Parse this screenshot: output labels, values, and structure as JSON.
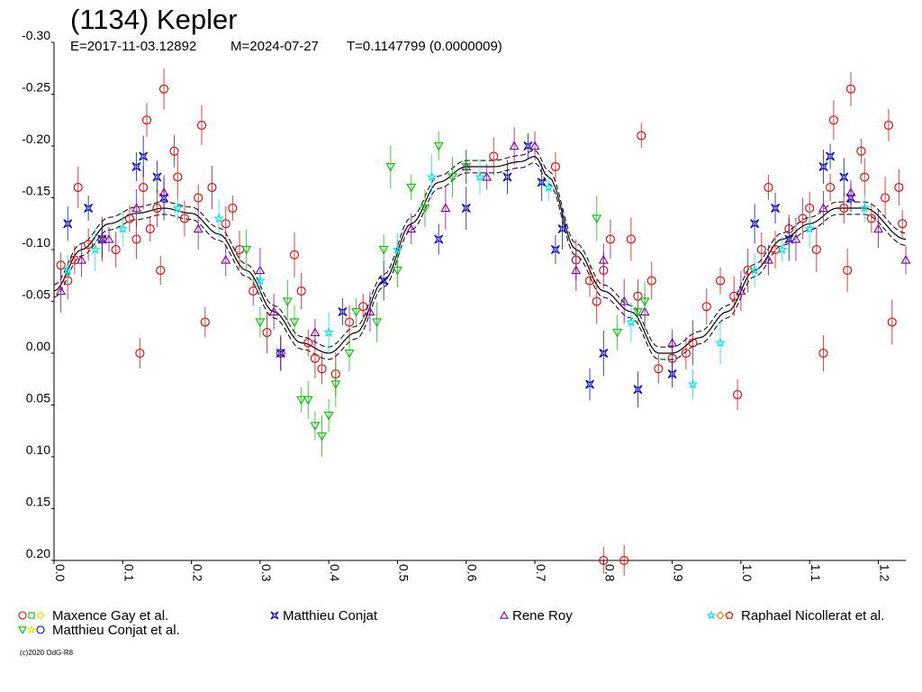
{
  "chart_data": {
    "type": "scatter",
    "title": "(1134) Kepler",
    "subtitle": {
      "epoch": "E=2017-11-03.12892",
      "mid": "M=2024-07-27",
      "period": "T=0.1147799 (0.0000009)"
    },
    "xlim": [
      0.0,
      1.24
    ],
    "ylim": [
      -0.3,
      0.2
    ],
    "y_inverted": true,
    "xticks": [
      "0.0",
      "0.1",
      "0.2",
      "0.3",
      "0.4",
      "0.5",
      "0.6",
      "0.7",
      "0.8",
      "0.9",
      "1.0",
      "1.1",
      "1.2"
    ],
    "yticks": [
      "-0.30",
      "-0.25",
      "-0.20",
      "-0.15",
      "-0.10",
      "-0.05",
      "0.00",
      "0.05",
      "0.10",
      "0.15",
      "0.20"
    ],
    "fit_curve": {
      "x": [
        0.0,
        0.04,
        0.08,
        0.12,
        0.16,
        0.2,
        0.24,
        0.28,
        0.32,
        0.36,
        0.4,
        0.44,
        0.48,
        0.52,
        0.56,
        0.6,
        0.64,
        0.68,
        0.7,
        0.72,
        0.76,
        0.8,
        0.84,
        0.88,
        0.9,
        0.94,
        0.98,
        1.02,
        1.06,
        1.1,
        1.14,
        1.18,
        1.24
      ],
      "y": [
        -0.06,
        -0.1,
        -0.125,
        -0.135,
        -0.14,
        -0.135,
        -0.115,
        -0.08,
        -0.04,
        -0.01,
        0.0,
        -0.02,
        -0.07,
        -0.125,
        -0.165,
        -0.18,
        -0.18,
        -0.185,
        -0.19,
        -0.17,
        -0.1,
        -0.06,
        -0.04,
        0.0,
        0.0,
        -0.015,
        -0.04,
        -0.08,
        -0.11,
        -0.125,
        -0.14,
        -0.14,
        -0.11
      ],
      "band": 0.006
    },
    "series": [
      {
        "name": "Maxence Gay et al.",
        "marker": "circle",
        "color": "#e00000",
        "points": [
          [
            0.01,
            -0.085
          ],
          [
            0.02,
            -0.07
          ],
          [
            0.03,
            -0.09
          ],
          [
            0.035,
            -0.16
          ],
          [
            0.05,
            -0.105
          ],
          [
            0.07,
            -0.11
          ],
          [
            0.09,
            -0.1
          ],
          [
            0.11,
            -0.13
          ],
          [
            0.12,
            -0.11
          ],
          [
            0.125,
            -0.0
          ],
          [
            0.13,
            -0.16
          ],
          [
            0.135,
            -0.225
          ],
          [
            0.14,
            -0.12
          ],
          [
            0.15,
            -0.14
          ],
          [
            0.155,
            -0.08
          ],
          [
            0.16,
            -0.255
          ],
          [
            0.175,
            -0.195
          ],
          [
            0.18,
            -0.17
          ],
          [
            0.19,
            -0.13
          ],
          [
            0.21,
            -0.15
          ],
          [
            0.215,
            -0.22
          ],
          [
            0.22,
            -0.03
          ],
          [
            0.23,
            -0.16
          ],
          [
            0.25,
            -0.125
          ],
          [
            0.26,
            -0.14
          ],
          [
            0.27,
            -0.1
          ],
          [
            0.29,
            -0.06
          ],
          [
            0.31,
            -0.02
          ],
          [
            0.33,
            -0.0
          ],
          [
            0.35,
            -0.095
          ],
          [
            0.36,
            -0.06
          ],
          [
            0.37,
            -0.01
          ],
          [
            0.38,
            0.005
          ],
          [
            0.39,
            0.015
          ],
          [
            0.41,
            0.02
          ],
          [
            0.43,
            -0.03
          ],
          [
            0.45,
            -0.045
          ],
          [
            0.64,
            -0.19
          ],
          [
            0.73,
            -0.18
          ],
          [
            0.76,
            -0.09
          ],
          [
            0.78,
            -0.07
          ],
          [
            0.79,
            -0.05
          ],
          [
            0.8,
            -0.08
          ],
          [
            0.8,
            0.2
          ],
          [
            0.81,
            -0.11
          ],
          [
            0.83,
            0.2
          ],
          [
            0.84,
            -0.11
          ],
          [
            0.85,
            -0.055
          ],
          [
            0.855,
            -0.21
          ],
          [
            0.87,
            -0.07
          ],
          [
            0.88,
            0.015
          ],
          [
            0.9,
            0.005
          ],
          [
            0.92,
            -0.0
          ],
          [
            0.93,
            -0.01
          ],
          [
            0.95,
            -0.045
          ],
          [
            0.97,
            -0.07
          ],
          [
            0.99,
            -0.055
          ],
          [
            0.995,
            0.04
          ],
          [
            1.01,
            -0.08
          ],
          [
            1.03,
            -0.1
          ],
          [
            1.04,
            -0.16
          ],
          [
            1.05,
            -0.1
          ],
          [
            1.07,
            -0.12
          ],
          [
            1.09,
            -0.13
          ],
          [
            1.1,
            -0.14
          ],
          [
            1.11,
            -0.1
          ],
          [
            1.12,
            -0.0
          ],
          [
            1.13,
            -0.16
          ],
          [
            1.135,
            -0.225
          ],
          [
            1.15,
            -0.14
          ],
          [
            1.155,
            -0.08
          ],
          [
            1.16,
            -0.255
          ],
          [
            1.175,
            -0.195
          ],
          [
            1.18,
            -0.17
          ],
          [
            1.19,
            -0.13
          ],
          [
            1.21,
            -0.15
          ],
          [
            1.215,
            -0.22
          ],
          [
            1.22,
            -0.03
          ],
          [
            1.23,
            -0.16
          ],
          [
            1.235,
            -0.125
          ]
        ]
      },
      {
        "name": "Matthieu Conjat",
        "marker": "star4",
        "color": "#0000c0",
        "points": [
          [
            0.02,
            -0.125
          ],
          [
            0.05,
            -0.14
          ],
          [
            0.07,
            -0.11
          ],
          [
            0.12,
            -0.18
          ],
          [
            0.13,
            -0.19
          ],
          [
            0.15,
            -0.17
          ],
          [
            0.16,
            -0.15
          ],
          [
            0.33,
            0.0
          ],
          [
            0.42,
            -0.04
          ],
          [
            0.48,
            -0.07
          ],
          [
            0.56,
            -0.11
          ],
          [
            0.6,
            -0.14
          ],
          [
            0.66,
            -0.17
          ],
          [
            0.69,
            -0.2
          ],
          [
            0.71,
            -0.165
          ],
          [
            0.73,
            -0.1
          ],
          [
            0.74,
            -0.12
          ],
          [
            0.78,
            0.03
          ],
          [
            0.8,
            -0.0
          ],
          [
            0.85,
            0.035
          ],
          [
            0.9,
            0.02
          ],
          [
            1.02,
            -0.125
          ],
          [
            1.05,
            -0.14
          ],
          [
            1.07,
            -0.11
          ],
          [
            1.12,
            -0.18
          ],
          [
            1.13,
            -0.19
          ],
          [
            1.15,
            -0.17
          ],
          [
            1.16,
            -0.15
          ]
        ]
      },
      {
        "name": "Rene Roy",
        "marker": "triangle",
        "color": "#8000a0",
        "points": [
          [
            0.01,
            -0.06
          ],
          [
            0.04,
            -0.09
          ],
          [
            0.08,
            -0.11
          ],
          [
            0.12,
            -0.14
          ],
          [
            0.16,
            -0.155
          ],
          [
            0.21,
            -0.12
          ],
          [
            0.25,
            -0.09
          ],
          [
            0.3,
            -0.08
          ],
          [
            0.32,
            -0.04
          ],
          [
            0.38,
            -0.02
          ],
          [
            0.46,
            -0.04
          ],
          [
            0.52,
            -0.12
          ],
          [
            0.57,
            -0.14
          ],
          [
            0.6,
            -0.18
          ],
          [
            0.63,
            -0.17
          ],
          [
            0.67,
            -0.2
          ],
          [
            0.7,
            -0.2
          ],
          [
            0.76,
            -0.08
          ],
          [
            0.8,
            -0.09
          ],
          [
            0.83,
            -0.05
          ],
          [
            0.86,
            -0.04
          ],
          [
            0.9,
            -0.01
          ],
          [
            1.0,
            -0.06
          ],
          [
            1.04,
            -0.09
          ],
          [
            1.08,
            -0.11
          ],
          [
            1.12,
            -0.14
          ],
          [
            1.16,
            -0.155
          ],
          [
            1.2,
            -0.12
          ],
          [
            1.24,
            -0.09
          ]
        ]
      },
      {
        "name": "Raphael Nicollerat et al.",
        "marker": "star",
        "color": "#00e0e0",
        "points": [
          [
            0.02,
            -0.08
          ],
          [
            0.06,
            -0.1
          ],
          [
            0.1,
            -0.12
          ],
          [
            0.18,
            -0.14
          ],
          [
            0.24,
            -0.13
          ],
          [
            0.3,
            -0.07
          ],
          [
            0.4,
            -0.02
          ],
          [
            0.5,
            -0.1
          ],
          [
            0.55,
            -0.17
          ],
          [
            0.62,
            -0.17
          ],
          [
            0.72,
            -0.16
          ],
          [
            0.84,
            -0.03
          ],
          [
            0.93,
            0.03
          ],
          [
            0.97,
            -0.01
          ],
          [
            1.02,
            -0.08
          ],
          [
            1.06,
            -0.1
          ],
          [
            1.1,
            -0.12
          ],
          [
            1.18,
            -0.14
          ]
        ]
      },
      {
        "name": "Matthieu Conjat et al.",
        "marker": "triangle-down",
        "color": "#00c000",
        "points": [
          [
            0.28,
            -0.1
          ],
          [
            0.3,
            -0.03
          ],
          [
            0.34,
            -0.05
          ],
          [
            0.35,
            -0.03
          ],
          [
            0.36,
            0.045
          ],
          [
            0.37,
            0.045
          ],
          [
            0.38,
            0.07
          ],
          [
            0.39,
            0.08
          ],
          [
            0.4,
            0.06
          ],
          [
            0.41,
            0.03
          ],
          [
            0.43,
            0.0
          ],
          [
            0.44,
            -0.04
          ],
          [
            0.47,
            -0.03
          ],
          [
            0.48,
            -0.1
          ],
          [
            0.49,
            -0.18
          ],
          [
            0.5,
            -0.08
          ],
          [
            0.52,
            -0.16
          ],
          [
            0.54,
            -0.14
          ],
          [
            0.56,
            -0.2
          ],
          [
            0.58,
            -0.17
          ],
          [
            0.6,
            -0.18
          ],
          [
            0.79,
            -0.13
          ],
          [
            0.82,
            -0.02
          ],
          [
            0.85,
            -0.04
          ],
          [
            0.86,
            -0.05
          ]
        ]
      }
    ],
    "legend": [
      {
        "label": "Maxence Gay et al.",
        "markers": [
          "circle:#e00000",
          "square:#00c000",
          "diamond:#e0e000"
        ]
      },
      {
        "label": "Matthieu Conjat",
        "markers": [
          "star4:#0000c0"
        ]
      },
      {
        "label": "Rene Roy",
        "markers": [
          "triangle:#8000a0"
        ]
      },
      {
        "label": "Raphael Nicollerat et al.",
        "markers": [
          "star:#00e0e0",
          "diamond:#e08000",
          "pentagon:#e00000"
        ]
      },
      {
        "label": "Matthieu Conjat et al.",
        "markers": [
          "triangle-down:#00c000",
          "star:#e0e000",
          "circle:#0000c0"
        ]
      }
    ],
    "copyright": "(c)2020 OdG-R8"
  }
}
